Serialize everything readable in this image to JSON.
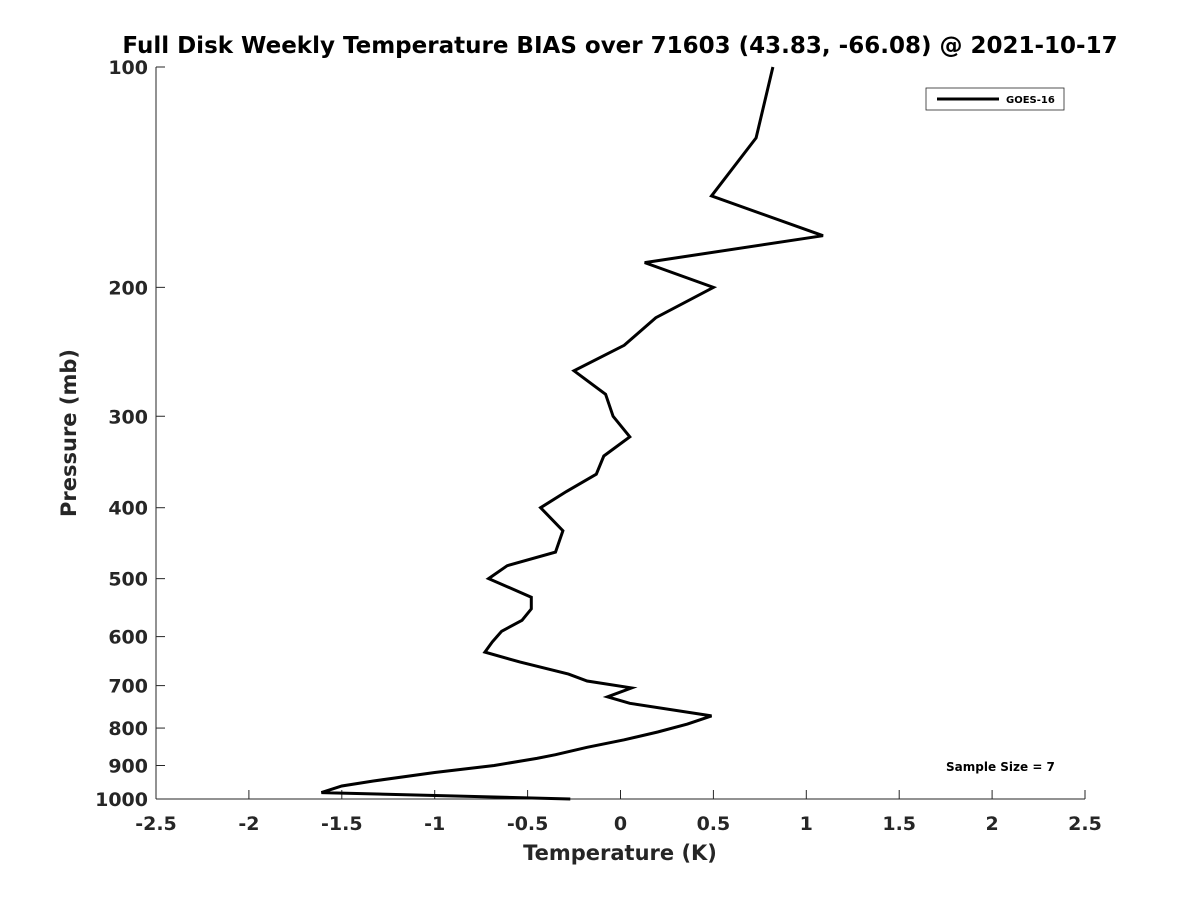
{
  "chart_data": {
    "type": "line",
    "title": "Full Disk Weekly Temperature BIAS over 71603 (43.83, -66.08) @ 2021-10-17",
    "xlabel": "Temperature (K)",
    "ylabel": "Pressure (mb)",
    "xlim": [
      -2.5,
      2.5
    ],
    "ylim": [
      100,
      1000
    ],
    "y_scale": "log",
    "y_reversed": true,
    "x_ticks": [
      "-2.5",
      "-2",
      "-1.5",
      "-1",
      "-0.5",
      "0",
      "0.5",
      "1",
      "1.5",
      "2",
      "2.5"
    ],
    "y_ticks": [
      "100",
      "200",
      "300",
      "400",
      "500",
      "600",
      "700",
      "800",
      "900",
      "1000"
    ],
    "grid": false,
    "legend": {
      "placement": "top-right",
      "entries": [
        "GOES-16"
      ]
    },
    "annotation": "Sample Size = 7",
    "series": [
      {
        "name": "GOES-16",
        "color": "#000000",
        "points": [
          {
            "t": 0.82,
            "p": 100
          },
          {
            "t": 0.73,
            "p": 125
          },
          {
            "t": 0.49,
            "p": 150
          },
          {
            "t": 1.09,
            "p": 170
          },
          {
            "t": 0.13,
            "p": 185
          },
          {
            "t": 0.5,
            "p": 200
          },
          {
            "t": 0.19,
            "p": 220
          },
          {
            "t": 0.02,
            "p": 240
          },
          {
            "t": -0.25,
            "p": 260
          },
          {
            "t": -0.08,
            "p": 280
          },
          {
            "t": -0.04,
            "p": 300
          },
          {
            "t": 0.05,
            "p": 320
          },
          {
            "t": -0.09,
            "p": 340
          },
          {
            "t": -0.13,
            "p": 360
          },
          {
            "t": -0.29,
            "p": 380
          },
          {
            "t": -0.43,
            "p": 400
          },
          {
            "t": -0.31,
            "p": 430
          },
          {
            "t": -0.35,
            "p": 460
          },
          {
            "t": -0.61,
            "p": 480
          },
          {
            "t": -0.71,
            "p": 500
          },
          {
            "t": -0.48,
            "p": 530
          },
          {
            "t": -0.48,
            "p": 550
          },
          {
            "t": -0.53,
            "p": 570
          },
          {
            "t": -0.64,
            "p": 590
          },
          {
            "t": -0.69,
            "p": 610
          },
          {
            "t": -0.73,
            "p": 630
          },
          {
            "t": -0.54,
            "p": 650
          },
          {
            "t": -0.28,
            "p": 675
          },
          {
            "t": -0.18,
            "p": 690
          },
          {
            "t": 0.06,
            "p": 705
          },
          {
            "t": -0.07,
            "p": 725
          },
          {
            "t": 0.05,
            "p": 740
          },
          {
            "t": 0.49,
            "p": 770
          },
          {
            "t": 0.36,
            "p": 790
          },
          {
            "t": 0.2,
            "p": 810
          },
          {
            "t": 0.02,
            "p": 830
          },
          {
            "t": -0.18,
            "p": 850
          },
          {
            "t": -0.35,
            "p": 870
          },
          {
            "t": -0.45,
            "p": 880
          },
          {
            "t": -0.68,
            "p": 900
          },
          {
            "t": -1.0,
            "p": 920
          },
          {
            "t": -1.33,
            "p": 945
          },
          {
            "t": -1.5,
            "p": 960
          },
          {
            "t": -1.61,
            "p": 980
          },
          {
            "t": -0.27,
            "p": 1000
          }
        ]
      }
    ]
  }
}
